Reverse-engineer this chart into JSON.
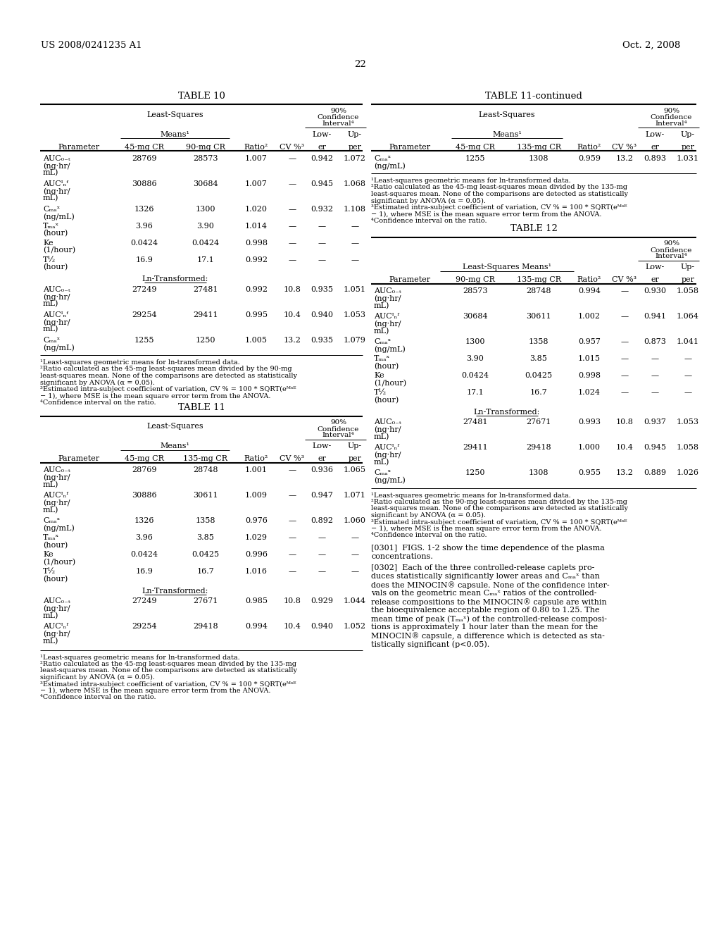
{
  "header_left": "US 2008/0241235 A1",
  "header_right": "Oct. 2, 2008",
  "page_number": "22",
  "bg": "#ffffff"
}
